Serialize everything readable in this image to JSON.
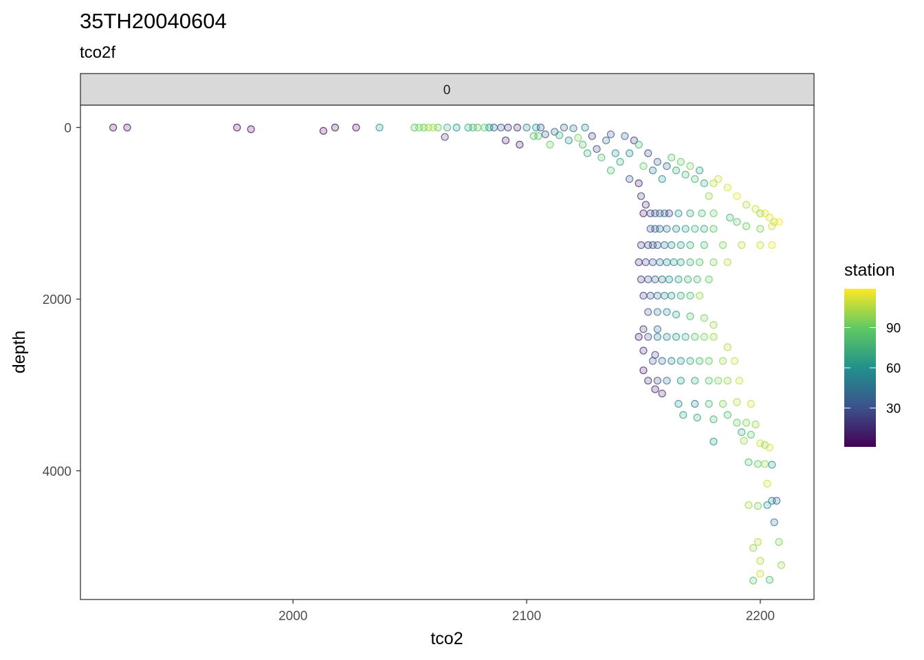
{
  "title": "35TH20040604",
  "subtitle": "tco2f",
  "facet_label": "0",
  "chart_data": {
    "type": "scatter",
    "xlabel": "tco2",
    "ylabel": "depth",
    "xlim": [
      1909,
      2223
    ],
    "ylim": [
      5500,
      -260
    ],
    "y_reversed": true,
    "grid": false,
    "x_ticks": [
      2000,
      2100,
      2200
    ],
    "y_ticks": [
      0,
      2000,
      4000
    ],
    "legend": {
      "title": "station",
      "position": "right",
      "type": "colorbar",
      "range": [
        1,
        119
      ],
      "ticks": [
        30,
        60,
        90
      ],
      "palette": [
        "#440154",
        "#3b528b",
        "#21918c",
        "#5ec962",
        "#fde725"
      ]
    },
    "points": [
      {
        "x": 1923,
        "y": 0,
        "s": 3
      },
      {
        "x": 1929,
        "y": 0,
        "s": 3
      },
      {
        "x": 1976,
        "y": 0,
        "s": 3
      },
      {
        "x": 1982,
        "y": 20,
        "s": 3
      },
      {
        "x": 2013,
        "y": 40,
        "s": 3
      },
      {
        "x": 2018,
        "y": 0,
        "s": 3
      },
      {
        "x": 2027,
        "y": 0,
        "s": 5
      },
      {
        "x": 2037,
        "y": 0,
        "s": 60
      },
      {
        "x": 2052,
        "y": 0,
        "s": 85
      },
      {
        "x": 2054,
        "y": 0,
        "s": 95
      },
      {
        "x": 2056,
        "y": 0,
        "s": 90
      },
      {
        "x": 2058,
        "y": 0,
        "s": 100
      },
      {
        "x": 2060,
        "y": 0,
        "s": 105
      },
      {
        "x": 2062,
        "y": 0,
        "s": 90
      },
      {
        "x": 2066,
        "y": 0,
        "s": 75
      },
      {
        "x": 2070,
        "y": 0,
        "s": 60
      },
      {
        "x": 2065,
        "y": 110,
        "s": 20
      },
      {
        "x": 2075,
        "y": 0,
        "s": 70
      },
      {
        "x": 2077,
        "y": 0,
        "s": 80
      },
      {
        "x": 2079,
        "y": 0,
        "s": 85
      },
      {
        "x": 2082,
        "y": 0,
        "s": 90
      },
      {
        "x": 2084,
        "y": 0,
        "s": 60
      },
      {
        "x": 2086,
        "y": 0,
        "s": 40
      },
      {
        "x": 2089,
        "y": 0,
        "s": 30
      },
      {
        "x": 2092,
        "y": 0,
        "s": 20
      },
      {
        "x": 2091,
        "y": 150,
        "s": 10
      },
      {
        "x": 2096,
        "y": 0,
        "s": 15
      },
      {
        "x": 2100,
        "y": 0,
        "s": 50
      },
      {
        "x": 2104,
        "y": 0,
        "s": 60
      },
      {
        "x": 2106,
        "y": 0,
        "s": 30
      },
      {
        "x": 2103,
        "y": 100,
        "s": 80
      },
      {
        "x": 2105,
        "y": 100,
        "s": 85
      },
      {
        "x": 2108,
        "y": 80,
        "s": 30
      },
      {
        "x": 2112,
        "y": 50,
        "s": 40
      },
      {
        "x": 2114,
        "y": 90,
        "s": 70
      },
      {
        "x": 2116,
        "y": 0,
        "s": 35
      },
      {
        "x": 2120,
        "y": 10,
        "s": 45
      },
      {
        "x": 2125,
        "y": 0,
        "s": 50
      },
      {
        "x": 2097,
        "y": 200,
        "s": 10
      },
      {
        "x": 2110,
        "y": 200,
        "s": 90
      },
      {
        "x": 2118,
        "y": 150,
        "s": 60
      },
      {
        "x": 2122,
        "y": 120,
        "s": 95
      },
      {
        "x": 2124,
        "y": 200,
        "s": 80
      },
      {
        "x": 2126,
        "y": 300,
        "s": 70
      },
      {
        "x": 2128,
        "y": 100,
        "s": 20
      },
      {
        "x": 2130,
        "y": 250,
        "s": 25
      },
      {
        "x": 2132,
        "y": 350,
        "s": 80
      },
      {
        "x": 2134,
        "y": 150,
        "s": 40
      },
      {
        "x": 2136,
        "y": 80,
        "s": 30
      },
      {
        "x": 2138,
        "y": 300,
        "s": 60
      },
      {
        "x": 2140,
        "y": 400,
        "s": 70
      },
      {
        "x": 2142,
        "y": 100,
        "s": 35
      },
      {
        "x": 2144,
        "y": 300,
        "s": 55
      },
      {
        "x": 2146,
        "y": 150,
        "s": 20
      },
      {
        "x": 2148,
        "y": 200,
        "s": 75
      },
      {
        "x": 2150,
        "y": 450,
        "s": 90
      },
      {
        "x": 2136,
        "y": 500,
        "s": 80
      },
      {
        "x": 2144,
        "y": 600,
        "s": 30
      },
      {
        "x": 2148,
        "y": 650,
        "s": 10
      },
      {
        "x": 2152,
        "y": 300,
        "s": 25
      },
      {
        "x": 2154,
        "y": 500,
        "s": 45
      },
      {
        "x": 2156,
        "y": 400,
        "s": 35
      },
      {
        "x": 2158,
        "y": 600,
        "s": 60
      },
      {
        "x": 2160,
        "y": 450,
        "s": 40
      },
      {
        "x": 2162,
        "y": 350,
        "s": 85
      },
      {
        "x": 2164,
        "y": 500,
        "s": 70
      },
      {
        "x": 2166,
        "y": 400,
        "s": 90
      },
      {
        "x": 2168,
        "y": 550,
        "s": 75
      },
      {
        "x": 2170,
        "y": 450,
        "s": 95
      },
      {
        "x": 2172,
        "y": 600,
        "s": 80
      },
      {
        "x": 2174,
        "y": 500,
        "s": 65
      },
      {
        "x": 2176,
        "y": 650,
        "s": 70
      },
      {
        "x": 2180,
        "y": 650,
        "s": 105
      },
      {
        "x": 2182,
        "y": 600,
        "s": 110
      },
      {
        "x": 2178,
        "y": 800,
        "s": 100
      },
      {
        "x": 2186,
        "y": 700,
        "s": 112
      },
      {
        "x": 2190,
        "y": 800,
        "s": 115
      },
      {
        "x": 2194,
        "y": 900,
        "s": 105
      },
      {
        "x": 2198,
        "y": 950,
        "s": 110
      },
      {
        "x": 2200,
        "y": 1000,
        "s": 100
      },
      {
        "x": 2202,
        "y": 1000,
        "s": 115
      },
      {
        "x": 2204,
        "y": 1050,
        "s": 112
      },
      {
        "x": 2206,
        "y": 1100,
        "s": 108
      },
      {
        "x": 2208,
        "y": 1100,
        "s": 118
      },
      {
        "x": 2205,
        "y": 1150,
        "s": 110
      },
      {
        "x": 2200,
        "y": 1180,
        "s": 95
      },
      {
        "x": 2194,
        "y": 1150,
        "s": 90
      },
      {
        "x": 2190,
        "y": 1100,
        "s": 85
      },
      {
        "x": 2187,
        "y": 1050,
        "s": 80
      },
      {
        "x": 2149,
        "y": 800,
        "s": 20
      },
      {
        "x": 2151,
        "y": 900,
        "s": 15
      },
      {
        "x": 2150,
        "y": 1000,
        "s": 10
      },
      {
        "x": 2153,
        "y": 1000,
        "s": 20
      },
      {
        "x": 2155,
        "y": 1000,
        "s": 30
      },
      {
        "x": 2157,
        "y": 1000,
        "s": 35
      },
      {
        "x": 2159,
        "y": 1000,
        "s": 40
      },
      {
        "x": 2161,
        "y": 1000,
        "s": 25
      },
      {
        "x": 2165,
        "y": 1000,
        "s": 60
      },
      {
        "x": 2170,
        "y": 1000,
        "s": 70
      },
      {
        "x": 2175,
        "y": 1000,
        "s": 80
      },
      {
        "x": 2180,
        "y": 1000,
        "s": 90
      },
      {
        "x": 2153,
        "y": 1180,
        "s": 30
      },
      {
        "x": 2155,
        "y": 1180,
        "s": 35
      },
      {
        "x": 2157,
        "y": 1180,
        "s": 40
      },
      {
        "x": 2160,
        "y": 1180,
        "s": 45
      },
      {
        "x": 2164,
        "y": 1180,
        "s": 55
      },
      {
        "x": 2168,
        "y": 1180,
        "s": 65
      },
      {
        "x": 2172,
        "y": 1180,
        "s": 75
      },
      {
        "x": 2176,
        "y": 1180,
        "s": 70
      },
      {
        "x": 2180,
        "y": 1180,
        "s": 85
      },
      {
        "x": 2149,
        "y": 1370,
        "s": 20
      },
      {
        "x": 2152,
        "y": 1370,
        "s": 25
      },
      {
        "x": 2154,
        "y": 1370,
        "s": 30
      },
      {
        "x": 2156,
        "y": 1370,
        "s": 35
      },
      {
        "x": 2159,
        "y": 1370,
        "s": 45
      },
      {
        "x": 2162,
        "y": 1370,
        "s": 55
      },
      {
        "x": 2166,
        "y": 1370,
        "s": 65
      },
      {
        "x": 2170,
        "y": 1370,
        "s": 75
      },
      {
        "x": 2176,
        "y": 1370,
        "s": 80
      },
      {
        "x": 2184,
        "y": 1370,
        "s": 95
      },
      {
        "x": 2192,
        "y": 1370,
        "s": 105
      },
      {
        "x": 2200,
        "y": 1370,
        "s": 110
      },
      {
        "x": 2205,
        "y": 1370,
        "s": 115
      },
      {
        "x": 2148,
        "y": 1570,
        "s": 15
      },
      {
        "x": 2151,
        "y": 1570,
        "s": 25
      },
      {
        "x": 2154,
        "y": 1570,
        "s": 35
      },
      {
        "x": 2157,
        "y": 1570,
        "s": 40
      },
      {
        "x": 2160,
        "y": 1570,
        "s": 50
      },
      {
        "x": 2163,
        "y": 1570,
        "s": 60
      },
      {
        "x": 2166,
        "y": 1570,
        "s": 65
      },
      {
        "x": 2170,
        "y": 1570,
        "s": 75
      },
      {
        "x": 2174,
        "y": 1570,
        "s": 85
      },
      {
        "x": 2180,
        "y": 1570,
        "s": 95
      },
      {
        "x": 2186,
        "y": 1570,
        "s": 105
      },
      {
        "x": 2149,
        "y": 1770,
        "s": 20
      },
      {
        "x": 2152,
        "y": 1770,
        "s": 30
      },
      {
        "x": 2155,
        "y": 1770,
        "s": 35
      },
      {
        "x": 2158,
        "y": 1770,
        "s": 45
      },
      {
        "x": 2161,
        "y": 1770,
        "s": 55
      },
      {
        "x": 2165,
        "y": 1770,
        "s": 65
      },
      {
        "x": 2169,
        "y": 1770,
        "s": 75
      },
      {
        "x": 2173,
        "y": 1770,
        "s": 80
      },
      {
        "x": 2178,
        "y": 1770,
        "s": 90
      },
      {
        "x": 2150,
        "y": 1960,
        "s": 20
      },
      {
        "x": 2153,
        "y": 1960,
        "s": 30
      },
      {
        "x": 2156,
        "y": 1960,
        "s": 40
      },
      {
        "x": 2159,
        "y": 1960,
        "s": 50
      },
      {
        "x": 2162,
        "y": 1960,
        "s": 55
      },
      {
        "x": 2166,
        "y": 1960,
        "s": 70
      },
      {
        "x": 2170,
        "y": 1960,
        "s": 80
      },
      {
        "x": 2174,
        "y": 1960,
        "s": 100
      },
      {
        "x": 2152,
        "y": 2150,
        "s": 30
      },
      {
        "x": 2156,
        "y": 2150,
        "s": 45
      },
      {
        "x": 2160,
        "y": 2150,
        "s": 55
      },
      {
        "x": 2164,
        "y": 2180,
        "s": 65
      },
      {
        "x": 2170,
        "y": 2200,
        "s": 80
      },
      {
        "x": 2176,
        "y": 2220,
        "s": 95
      },
      {
        "x": 2180,
        "y": 2300,
        "s": 100
      },
      {
        "x": 2150,
        "y": 2350,
        "s": 20
      },
      {
        "x": 2156,
        "y": 2350,
        "s": 40
      },
      {
        "x": 2148,
        "y": 2440,
        "s": 10
      },
      {
        "x": 2152,
        "y": 2440,
        "s": 30
      },
      {
        "x": 2156,
        "y": 2440,
        "s": 45
      },
      {
        "x": 2160,
        "y": 2440,
        "s": 55
      },
      {
        "x": 2164,
        "y": 2440,
        "s": 60
      },
      {
        "x": 2168,
        "y": 2440,
        "s": 70
      },
      {
        "x": 2172,
        "y": 2440,
        "s": 85
      },
      {
        "x": 2176,
        "y": 2440,
        "s": 95
      },
      {
        "x": 2180,
        "y": 2440,
        "s": 100
      },
      {
        "x": 2186,
        "y": 2560,
        "s": 105
      },
      {
        "x": 2150,
        "y": 2600,
        "s": 15
      },
      {
        "x": 2155,
        "y": 2650,
        "s": 25
      },
      {
        "x": 2154,
        "y": 2720,
        "s": 30
      },
      {
        "x": 2158,
        "y": 2720,
        "s": 40
      },
      {
        "x": 2162,
        "y": 2720,
        "s": 50
      },
      {
        "x": 2166,
        "y": 2720,
        "s": 60
      },
      {
        "x": 2170,
        "y": 2720,
        "s": 70
      },
      {
        "x": 2174,
        "y": 2720,
        "s": 80
      },
      {
        "x": 2178,
        "y": 2720,
        "s": 90
      },
      {
        "x": 2184,
        "y": 2720,
        "s": 100
      },
      {
        "x": 2189,
        "y": 2720,
        "s": 110
      },
      {
        "x": 2150,
        "y": 2830,
        "s": 10
      },
      {
        "x": 2152,
        "y": 2950,
        "s": 15
      },
      {
        "x": 2156,
        "y": 2950,
        "s": 25
      },
      {
        "x": 2160,
        "y": 2950,
        "s": 45
      },
      {
        "x": 2166,
        "y": 2950,
        "s": 60
      },
      {
        "x": 2172,
        "y": 2950,
        "s": 70
      },
      {
        "x": 2178,
        "y": 2950,
        "s": 85
      },
      {
        "x": 2182,
        "y": 2950,
        "s": 95
      },
      {
        "x": 2186,
        "y": 2950,
        "s": 100
      },
      {
        "x": 2191,
        "y": 2950,
        "s": 110
      },
      {
        "x": 2155,
        "y": 3050,
        "s": 10
      },
      {
        "x": 2158,
        "y": 3100,
        "s": 15
      },
      {
        "x": 2165,
        "y": 3220,
        "s": 60
      },
      {
        "x": 2172,
        "y": 3220,
        "s": 50
      },
      {
        "x": 2178,
        "y": 3220,
        "s": 80
      },
      {
        "x": 2184,
        "y": 3220,
        "s": 95
      },
      {
        "x": 2190,
        "y": 3200,
        "s": 105
      },
      {
        "x": 2196,
        "y": 3220,
        "s": 110
      },
      {
        "x": 2167,
        "y": 3350,
        "s": 65
      },
      {
        "x": 2173,
        "y": 3380,
        "s": 70
      },
      {
        "x": 2180,
        "y": 3400,
        "s": 75
      },
      {
        "x": 2186,
        "y": 3350,
        "s": 80
      },
      {
        "x": 2190,
        "y": 3440,
        "s": 90
      },
      {
        "x": 2194,
        "y": 3440,
        "s": 95
      },
      {
        "x": 2198,
        "y": 3460,
        "s": 100
      },
      {
        "x": 2192,
        "y": 3550,
        "s": 70
      },
      {
        "x": 2196,
        "y": 3580,
        "s": 85
      },
      {
        "x": 2180,
        "y": 3660,
        "s": 60
      },
      {
        "x": 2193,
        "y": 3650,
        "s": 100
      },
      {
        "x": 2200,
        "y": 3680,
        "s": 110
      },
      {
        "x": 2202,
        "y": 3700,
        "s": 100
      },
      {
        "x": 2204,
        "y": 3730,
        "s": 112
      },
      {
        "x": 2195,
        "y": 3900,
        "s": 80
      },
      {
        "x": 2199,
        "y": 3920,
        "s": 90
      },
      {
        "x": 2202,
        "y": 3920,
        "s": 100
      },
      {
        "x": 2205,
        "y": 3930,
        "s": 60
      },
      {
        "x": 2203,
        "y": 4150,
        "s": 110
      },
      {
        "x": 2195,
        "y": 4400,
        "s": 100
      },
      {
        "x": 2199,
        "y": 4410,
        "s": 95
      },
      {
        "x": 2203,
        "y": 4400,
        "s": 60
      },
      {
        "x": 2205,
        "y": 4350,
        "s": 50
      },
      {
        "x": 2207,
        "y": 4350,
        "s": 40
      },
      {
        "x": 2206,
        "y": 4600,
        "s": 45
      },
      {
        "x": 2199,
        "y": 4830,
        "s": 105
      },
      {
        "x": 2208,
        "y": 4830,
        "s": 95
      },
      {
        "x": 2197,
        "y": 4900,
        "s": 100
      },
      {
        "x": 2200,
        "y": 5050,
        "s": 105
      },
      {
        "x": 2209,
        "y": 5100,
        "s": 100
      },
      {
        "x": 2200,
        "y": 5200,
        "s": 110
      },
      {
        "x": 2197,
        "y": 5280,
        "s": 85
      },
      {
        "x": 2204,
        "y": 5270,
        "s": 80
      }
    ]
  }
}
